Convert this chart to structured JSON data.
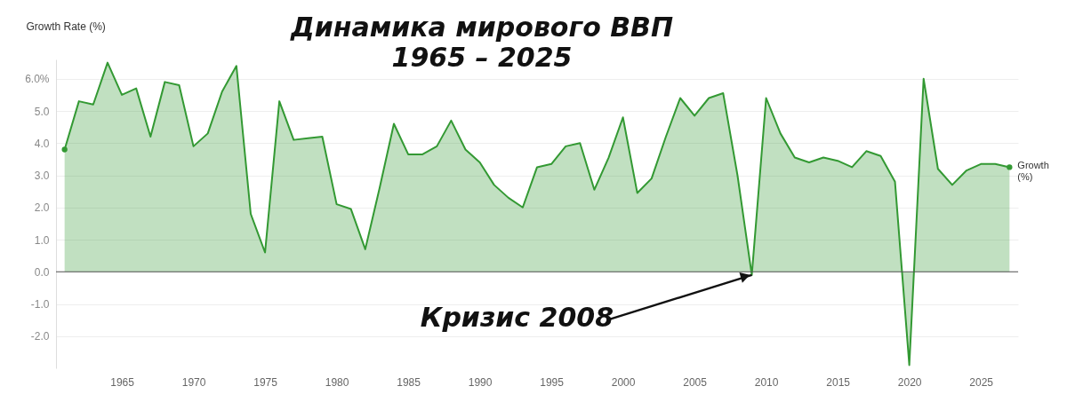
{
  "chart_data": {
    "type": "area",
    "title": "Динамика мирового ВВП",
    "subtitle": "1965 – 2025",
    "ylabel": "Growth Rate (%)",
    "x": [
      1961,
      1962,
      1963,
      1964,
      1965,
      1966,
      1967,
      1968,
      1969,
      1970,
      1971,
      1972,
      1973,
      1974,
      1975,
      1976,
      1977,
      1978,
      1979,
      1980,
      1981,
      1982,
      1983,
      1984,
      1985,
      1986,
      1987,
      1988,
      1989,
      1990,
      1991,
      1992,
      1993,
      1994,
      1995,
      1996,
      1997,
      1998,
      1999,
      2000,
      2001,
      2002,
      2003,
      2004,
      2005,
      2006,
      2007,
      2008,
      2009,
      2010,
      2011,
      2012,
      2013,
      2014,
      2015,
      2016,
      2017,
      2018,
      2019,
      2020,
      2021,
      2022,
      2023,
      2024,
      2025,
      2026,
      2027
    ],
    "series": [
      {
        "name": "Growth (%)",
        "color": "#339933",
        "values": [
          3.8,
          5.3,
          5.2,
          6.5,
          5.5,
          5.7,
          4.2,
          5.9,
          5.8,
          3.9,
          4.3,
          5.6,
          6.4,
          1.8,
          0.6,
          5.3,
          4.1,
          4.15,
          4.2,
          2.1,
          1.95,
          0.7,
          2.6,
          4.6,
          3.65,
          3.65,
          3.9,
          4.7,
          3.8,
          3.4,
          2.7,
          2.3,
          2.0,
          3.25,
          3.35,
          3.9,
          4.0,
          2.55,
          3.55,
          4.8,
          2.45,
          2.9,
          4.2,
          5.4,
          4.85,
          5.4,
          5.55,
          3.0,
          -0.1,
          5.4,
          4.3,
          3.55,
          3.4,
          3.55,
          3.45,
          3.25,
          3.75,
          3.6,
          2.8,
          -2.9,
          6.0,
          3.2,
          2.7,
          3.15,
          3.35,
          3.35,
          3.25
        ]
      }
    ],
    "xlim": [
      1960.4,
      2027.6
    ],
    "xticks": [
      1965,
      1970,
      1975,
      1980,
      1985,
      1990,
      1995,
      2000,
      2005,
      2010,
      2015,
      2020,
      2025
    ],
    "ylim": [
      -3,
      6.6
    ],
    "yticks": [
      {
        "value": -2,
        "label": "-2.0"
      },
      {
        "value": -1,
        "label": "-1.0"
      },
      {
        "value": 0,
        "label": "0.0"
      },
      {
        "value": 1,
        "label": "1.0"
      },
      {
        "value": 2,
        "label": "2.0"
      },
      {
        "value": 3,
        "label": "3.0"
      },
      {
        "value": 4,
        "label": "4.0"
      },
      {
        "value": 5,
        "label": "5.0"
      },
      {
        "value": 6,
        "label": "6.0%"
      }
    ],
    "grid": "y",
    "ref_lines": [
      {
        "axis": "y",
        "value": 0,
        "color": "#555555"
      }
    ],
    "annotations": [
      {
        "text": "Кризис 2008",
        "x": 2009,
        "y": -0.1
      }
    ]
  }
}
